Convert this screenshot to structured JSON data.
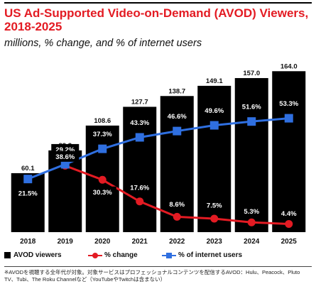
{
  "title": "US Ad-Supported Video-on-Demand (AVOD) Viewers, 2018-2025",
  "subtitle": "millions, % change, and % of internet users",
  "legend": {
    "bars": "AVOD viewers",
    "change": "% change",
    "share": "% of internet users"
  },
  "note": "※AVODを視聴する全年代が対象。対象サービスはプロフェッショナルコンテンツを配信するAVOD：Hulu、Peacock、Pluto TV、Tubi、The Roku Channelなど（YouTubeやTwitchは含まない）",
  "colors": {
    "bar": "#000000",
    "change": "#e31b23",
    "share": "#2f6fe0",
    "title": "#e31b23"
  },
  "chart_data": {
    "type": "bar",
    "categories": [
      "2018",
      "2019",
      "2020",
      "2021",
      "2022",
      "2023",
      "2024",
      "2025"
    ],
    "series": [
      {
        "name": "AVOD viewers",
        "type": "bar",
        "values": [
          60.1,
          83.3,
          108.6,
          127.7,
          138.7,
          149.1,
          157.0,
          164.0
        ],
        "labels": [
          "60.1",
          "83.3",
          "108.6",
          "127.7",
          "138.7",
          "149.1",
          "157.0",
          "164.0"
        ]
      },
      {
        "name": "% change",
        "type": "line",
        "marker": "circle",
        "values": [
          null,
          38.6,
          30.3,
          17.6,
          8.6,
          7.5,
          5.3,
          4.4
        ],
        "labels": [
          null,
          "38.6%",
          "30.3%",
          "17.6%",
          "8.6%",
          "7.5%",
          "5.3%",
          "4.4%"
        ]
      },
      {
        "name": "% of internet users",
        "type": "line",
        "marker": "square",
        "values": [
          21.5,
          29.2,
          37.3,
          43.3,
          46.6,
          49.6,
          51.6,
          53.3
        ],
        "labels": [
          "21.5%",
          "29.2%",
          "37.3%",
          "43.3%",
          "46.6%",
          "49.6%",
          "51.6%",
          "53.3%"
        ]
      }
    ],
    "ylim": [
      0,
      170
    ],
    "grid": false,
    "legend_position": "bottom-left"
  }
}
